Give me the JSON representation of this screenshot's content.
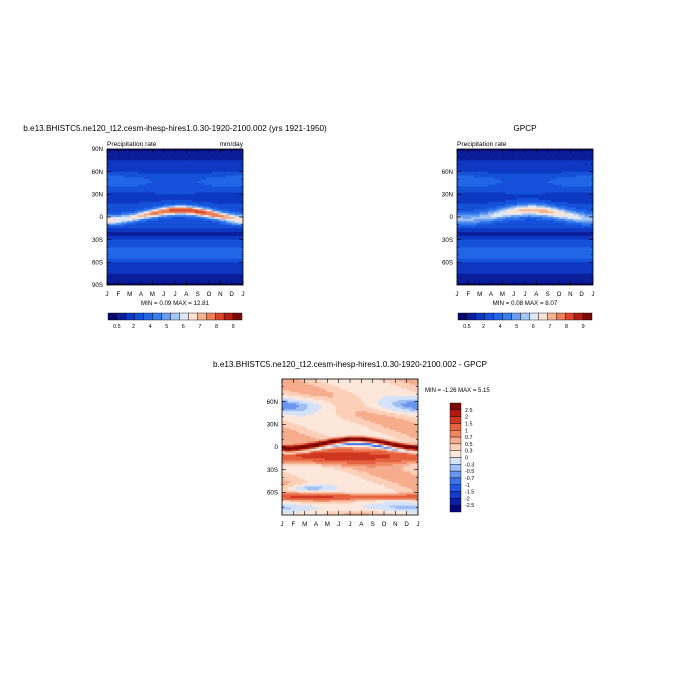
{
  "chart_data": [
    {
      "type": "heatmap",
      "title": "b.e13.BHISTC5.ne120_t12.cesm-ihesp-hires1.0.30-1920-2100.002 (yrs 1921-1950)",
      "left_label": "Precipitation rate",
      "right_label": "mm/day",
      "stats": "MIN =   0.09 MAX =   12.81",
      "x_ticks": [
        "J",
        "F",
        "M",
        "A",
        "M",
        "J",
        "J",
        "A",
        "S",
        "O",
        "N",
        "D",
        "J"
      ],
      "y_ticks": [
        "90N",
        "60N",
        "30N",
        "0",
        "30S",
        "60S",
        "90S"
      ],
      "y_tick_lat": [
        90,
        60,
        30,
        0,
        -30,
        -60,
        -90
      ],
      "ylim": [
        -90,
        90
      ],
      "colorbar_labels": [
        "0.5",
        "2",
        "4",
        "5",
        "6",
        "7",
        "8",
        "9"
      ],
      "levels": [
        0.5,
        1,
        2,
        3,
        4,
        5,
        6,
        7,
        8,
        9,
        10,
        12
      ],
      "colors": [
        "#08086b",
        "#0a1e9a",
        "#0d38c2",
        "#1550d9",
        "#2066e6",
        "#3a7fec",
        "#6a9ff0",
        "#a5c5f5",
        "#dde9f9",
        "#fbe2d2",
        "#f5b392",
        "#ec7e58",
        "#d9462b",
        "#b51f12",
        "#7a0a05"
      ],
      "field": "model"
    },
    {
      "type": "heatmap",
      "title": "GPCP",
      "left_label": "Precipitation rate",
      "right_label": "",
      "stats": "MIN =   0.08 MAX =   8.07",
      "x_ticks": [
        "J",
        "F",
        "M",
        "A",
        "M",
        "J",
        "J",
        "A",
        "S",
        "O",
        "N",
        "D",
        "J"
      ],
      "y_ticks": [
        "60N",
        "30N",
        "0",
        "30S",
        "60S"
      ],
      "y_tick_lat": [
        60,
        30,
        0,
        -30,
        -60
      ],
      "ylim": [
        -90,
        90
      ],
      "colorbar_labels": [
        "0.5",
        "2",
        "4",
        "5",
        "6",
        "7",
        "8",
        "9"
      ],
      "levels": [
        0.5,
        1,
        2,
        3,
        4,
        5,
        6,
        7,
        8,
        9,
        10,
        12
      ],
      "colors": [
        "#08086b",
        "#0a1e9a",
        "#0d38c2",
        "#1550d9",
        "#2066e6",
        "#3a7fec",
        "#6a9ff0",
        "#a5c5f5",
        "#dde9f9",
        "#fbe2d2",
        "#f5b392",
        "#ec7e58",
        "#d9462b",
        "#b51f12",
        "#7a0a05"
      ],
      "field": "obs"
    },
    {
      "type": "heatmap",
      "title": "b.e13.BHISTC5.ne120_t12.cesm-ihesp-hires1.0.30-1920-2100.002 - GPCP",
      "stats": "MIN =  -1.26 MAX =   5.15",
      "x_ticks": [
        "J",
        "F",
        "M",
        "A",
        "M",
        "J",
        "J",
        "A",
        "S",
        "O",
        "N",
        "D",
        "J"
      ],
      "y_ticks": [
        "60N",
        "30N",
        "0",
        "30S",
        "60S"
      ],
      "y_tick_lat": [
        60,
        30,
        0,
        -30,
        -60
      ],
      "ylim": [
        -90,
        90
      ],
      "colorbar_labels": [
        "2.5",
        "2",
        "1.5",
        "1",
        "0.7",
        "0.5",
        "0.3",
        "0",
        "-0.3",
        "-0.5",
        "-0.7",
        "-1",
        "-1.5",
        "-2",
        "-2.5"
      ],
      "levels": [
        -2.5,
        -2,
        -1.5,
        -1,
        -0.7,
        -0.5,
        -0.3,
        0,
        0.3,
        0.5,
        0.7,
        1,
        1.5,
        2,
        2.5
      ],
      "colors": [
        "#08087a",
        "#0c1ea8",
        "#1339cf",
        "#2255e3",
        "#3d72ea",
        "#6b95ef",
        "#a0bff4",
        "#d4e3f9",
        "#fde6da",
        "#fbcfb8",
        "#f6ad8e",
        "#ef8864",
        "#e5613f",
        "#cf3620",
        "#b01a0c",
        "#7e0806"
      ],
      "field": "diff"
    }
  ]
}
